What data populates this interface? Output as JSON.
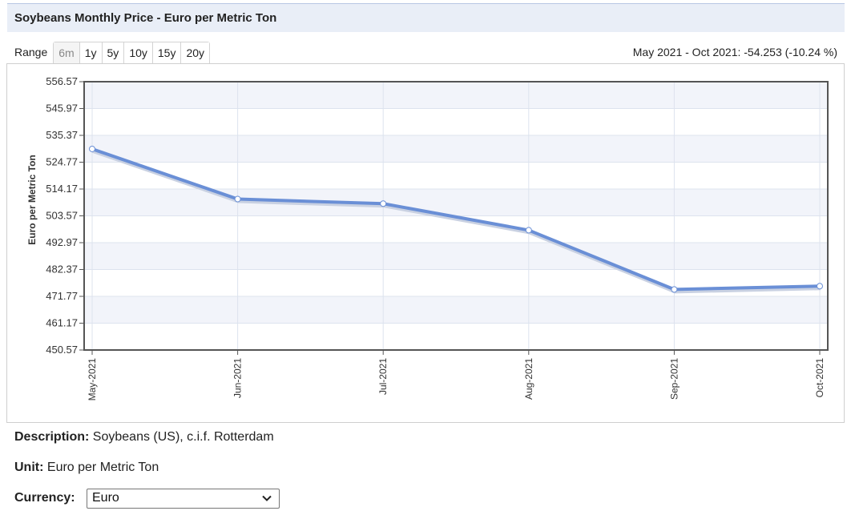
{
  "title": "Soybeans Monthly Price - Euro per Metric Ton",
  "range": {
    "label": "Range",
    "buttons": [
      "6m",
      "1y",
      "5y",
      "10y",
      "15y",
      "20y"
    ],
    "active": "6m"
  },
  "change_text": "May 2021 - Oct 2021: -54.253 (-10.24 %)",
  "chart_data": {
    "type": "line",
    "title": "",
    "xlabel": "",
    "ylabel": "Euro per Metric Ton",
    "categories": [
      "May-2021",
      "Jun-2021",
      "Jul-2021",
      "Aug-2021",
      "Sep-2021",
      "Oct-2021"
    ],
    "series": [
      {
        "values": [
          530.0,
          510.2,
          508.4,
          497.9,
          474.5,
          475.8
        ]
      }
    ],
    "ylim": [
      450.57,
      556.57
    ],
    "yticks": [
      "556.57",
      "545.97",
      "535.37",
      "524.77",
      "514.17",
      "503.57",
      "492.97",
      "482.37",
      "471.77",
      "461.17",
      "450.57"
    ],
    "grid": true,
    "line_color": "#6a8fd6"
  },
  "info": {
    "description_label": "Description:",
    "description_value": "Soybeans (US), c.i.f. Rotterdam",
    "unit_label": "Unit:",
    "unit_value": "Euro per Metric Ton",
    "currency_label": "Currency:",
    "currency_value": "Euro"
  }
}
